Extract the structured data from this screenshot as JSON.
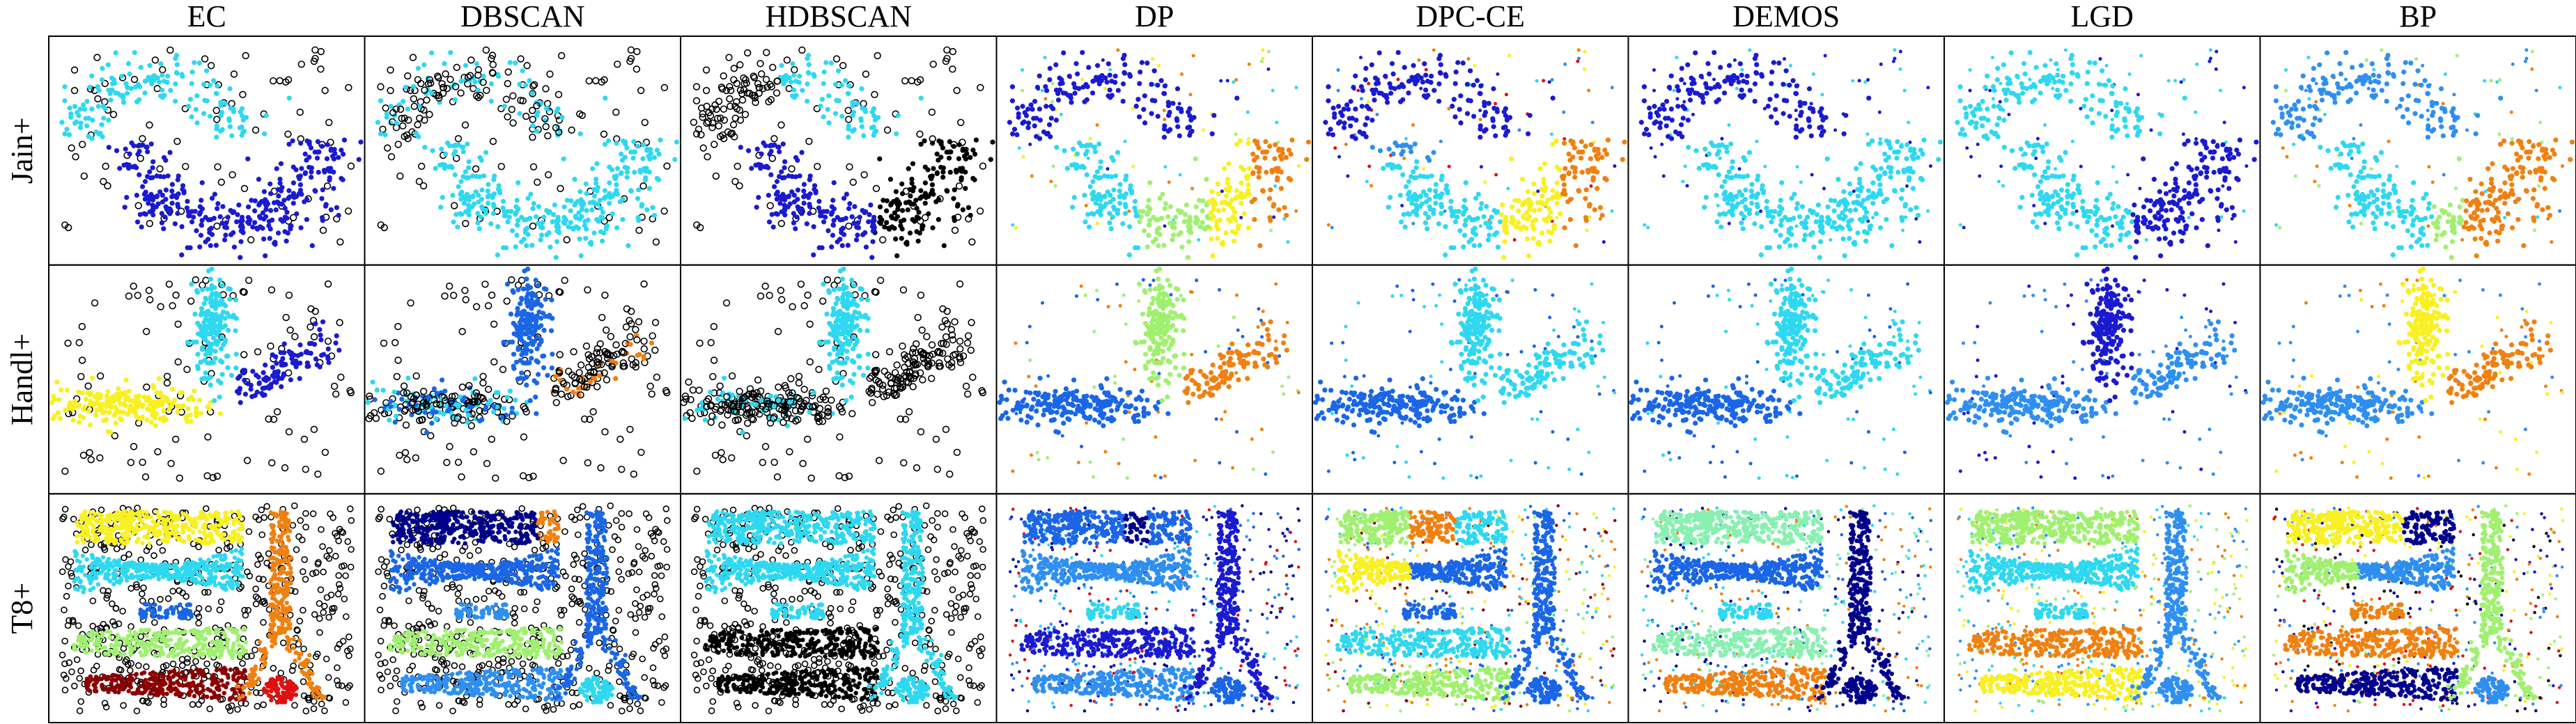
{
  "chart_data": {
    "type": "scatter",
    "layout": "grid",
    "column_titles": [
      "EC",
      "DBSCAN",
      "HDBSCAN",
      "DP",
      "DPC-CE",
      "DEMOS",
      "LGD",
      "BP"
    ],
    "row_titles": [
      "Jain+",
      "Handl+",
      "T8+"
    ],
    "grid": false,
    "legend": "none",
    "axes": "hidden",
    "noise_marker": "hollow black circle",
    "cluster_colors": {
      "dark_blue": "#1a1ad0",
      "navy": "#00008b",
      "blue": "#1a66e6",
      "mid_blue": "#2f8ff0",
      "cyan": "#2ed8f0",
      "mint": "#88f0b0",
      "green": "#a0f070",
      "yellow": "#f8f020",
      "orange": "#f08010",
      "red": "#e01010",
      "dark_red": "#8b0000",
      "black": "#000000"
    },
    "panels": {
      "Jain+": {
        "EC": {
          "clusters": [
            "cyan",
            "dark_blue"
          ],
          "noise": true
        },
        "DBSCAN": {
          "clusters": [
            "cyan"
          ],
          "noise": true
        },
        "HDBSCAN": {
          "clusters": [
            "cyan",
            "dark_blue",
            "black"
          ],
          "noise": true
        },
        "DP": {
          "clusters": [
            "dark_blue",
            "cyan",
            "green",
            "yellow",
            "orange"
          ],
          "noise": false
        },
        "DPC-CE": {
          "clusters": [
            "dark_blue",
            "mid_blue",
            "cyan",
            "yellow",
            "orange",
            "red"
          ],
          "noise": false
        },
        "DEMOS": {
          "clusters": [
            "dark_blue",
            "cyan"
          ],
          "noise": false
        },
        "LGD": {
          "clusters": [
            "cyan",
            "dark_blue"
          ],
          "noise": false
        },
        "BP": {
          "clusters": [
            "mid_blue",
            "cyan",
            "green",
            "orange"
          ],
          "noise": false
        }
      },
      "Handl+": {
        "EC": {
          "clusters": [
            "yellow",
            "cyan",
            "dark_blue"
          ],
          "noise": true
        },
        "DBSCAN": {
          "clusters": [
            "blue",
            "cyan",
            "yellow",
            "orange"
          ],
          "noise": true
        },
        "HDBSCAN": {
          "clusters": [
            "cyan"
          ],
          "noise": true
        },
        "DP": {
          "clusters": [
            "blue",
            "green",
            "orange"
          ],
          "noise": false
        },
        "DPC-CE": {
          "clusters": [
            "blue",
            "cyan"
          ],
          "noise": false
        },
        "DEMOS": {
          "clusters": [
            "blue",
            "cyan"
          ],
          "noise": false
        },
        "LGD": {
          "clusters": [
            "mid_blue",
            "dark_blue"
          ],
          "noise": false
        },
        "BP": {
          "clusters": [
            "yellow",
            "mid_blue",
            "orange"
          ],
          "noise": false
        }
      },
      "T8+": {
        "EC": {
          "clusters": [
            "yellow",
            "cyan",
            "blue",
            "green",
            "dark_red",
            "orange",
            "red"
          ],
          "noise": true
        },
        "DBSCAN": {
          "clusters": [
            "navy",
            "cyan",
            "blue",
            "mid_blue",
            "green",
            "orange",
            "yellow"
          ],
          "noise": true
        },
        "HDBSCAN": {
          "clusters": [
            "cyan",
            "black"
          ],
          "noise": true
        },
        "DP": {
          "clusters": [
            "blue",
            "mid_blue",
            "cyan",
            "dark_blue",
            "navy",
            "red"
          ],
          "noise": false
        },
        "DPC-CE": {
          "clusters": [
            "green",
            "orange",
            "cyan",
            "yellow",
            "blue",
            "dark_red"
          ],
          "noise": false
        },
        "DEMOS": {
          "clusters": [
            "mint",
            "blue",
            "navy",
            "cyan",
            "orange"
          ],
          "noise": false
        },
        "LGD": {
          "clusters": [
            "green",
            "cyan",
            "mid_blue",
            "orange",
            "yellow"
          ],
          "noise": false
        },
        "BP": {
          "clusters": [
            "dark_blue",
            "navy",
            "yellow",
            "orange",
            "green",
            "mid_blue",
            "red",
            "black"
          ],
          "noise": false
        }
      }
    }
  }
}
